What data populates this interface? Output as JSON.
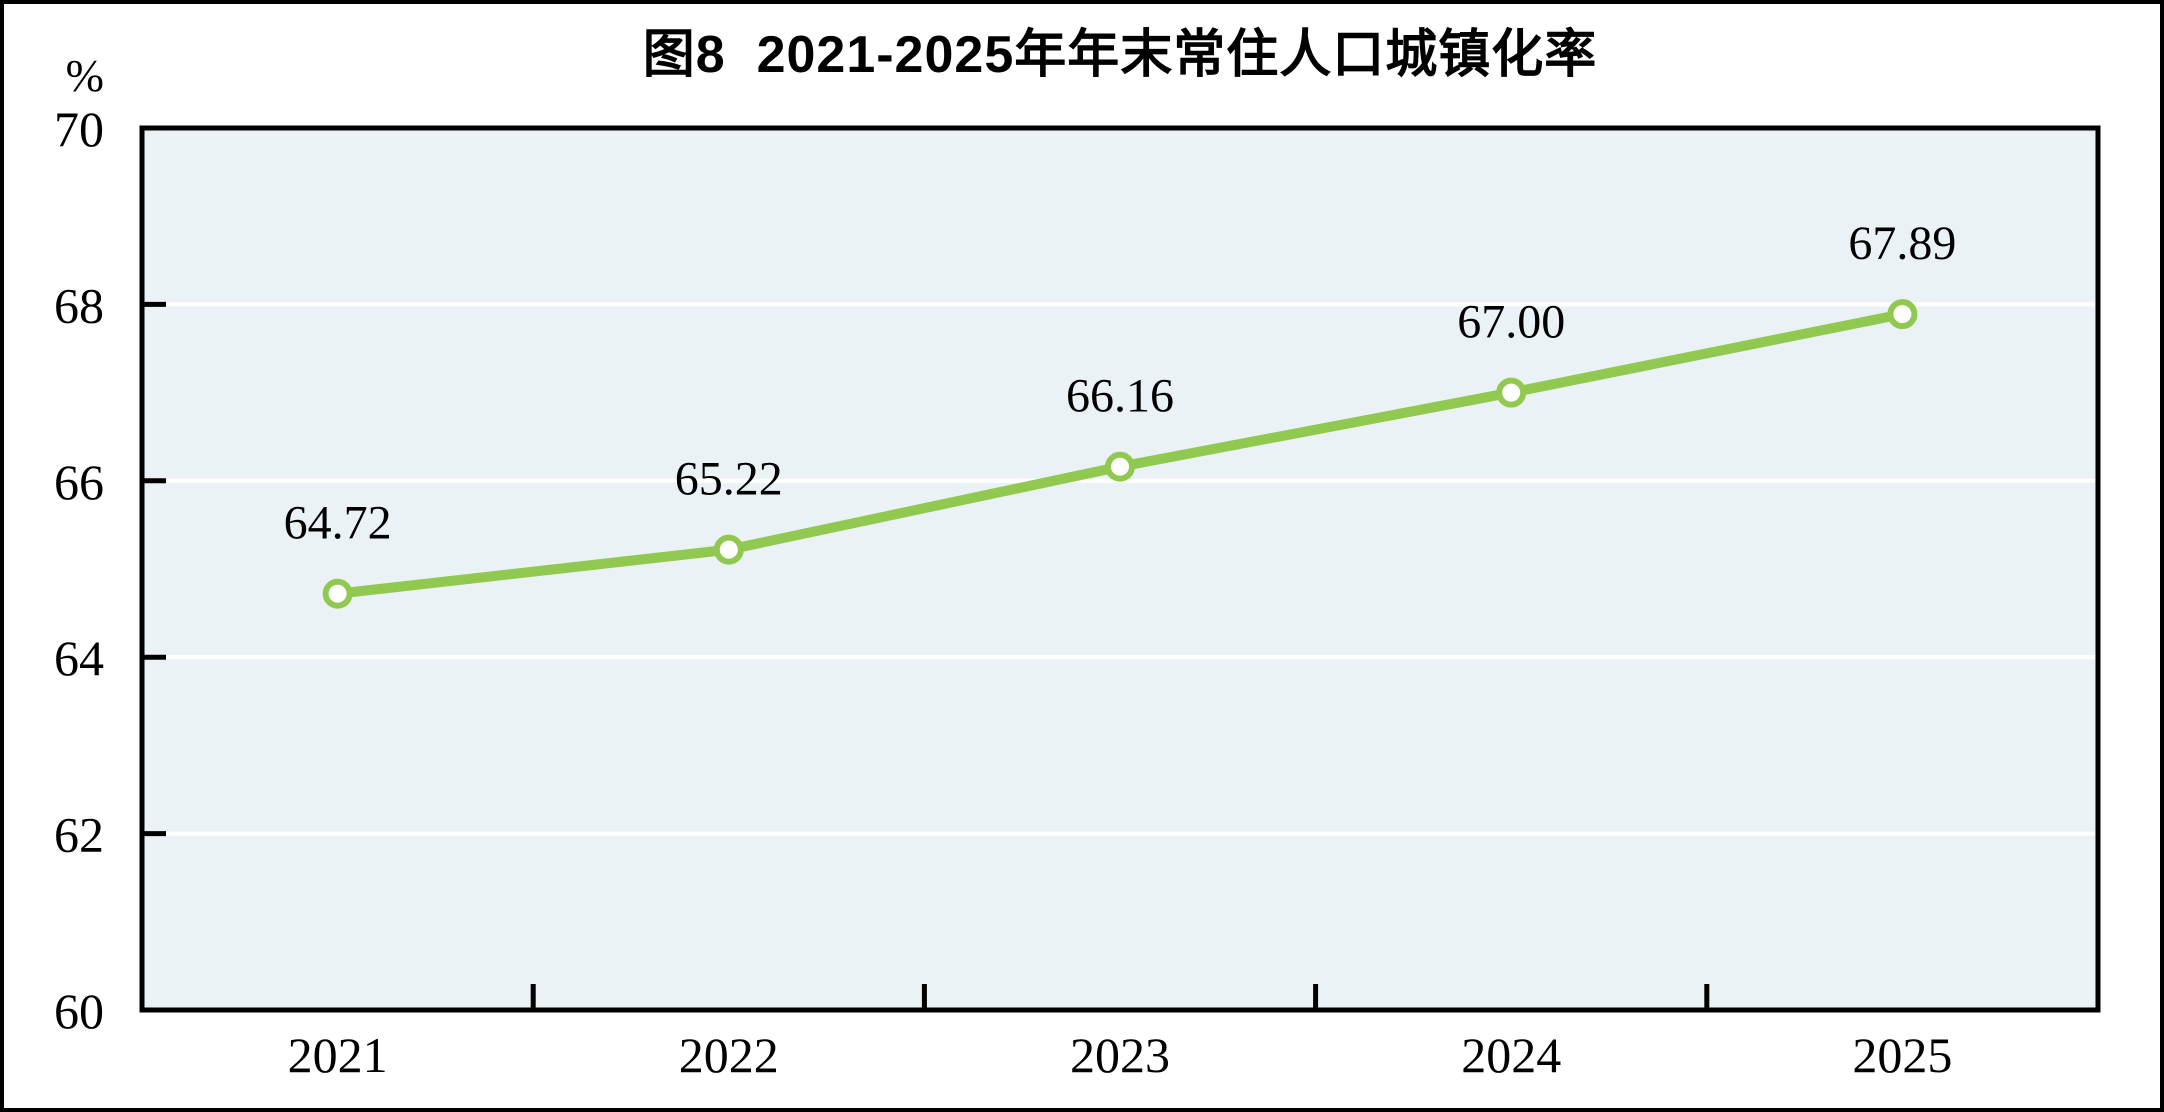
{
  "figure": {
    "title": "图8  2021-2025年年末常住人口城镇化率",
    "unit_label": "%"
  },
  "chart_data": {
    "type": "line",
    "title": "图8  2021-2025年年末常住人口城镇化率",
    "xlabel": "",
    "ylabel": "%",
    "categories": [
      "2021",
      "2022",
      "2023",
      "2024",
      "2025"
    ],
    "series": [
      {
        "name": "年末常住人口城镇化率",
        "values": [
          64.72,
          65.22,
          66.16,
          67.0,
          67.89
        ],
        "data_labels": [
          "64.72",
          "65.22",
          "66.16",
          "67.00",
          "67.89"
        ]
      }
    ],
    "ylim": [
      60,
      70
    ],
    "yticks": [
      60,
      62,
      64,
      66,
      68,
      70
    ],
    "ytick_labels": [
      "60",
      "62",
      "64",
      "66",
      "68",
      "70"
    ],
    "grid": "horizontal, white lines, on",
    "legend": "none",
    "colors": {
      "line": "#91C850",
      "marker_fill": "#FFFFFF",
      "plot_bg": "#EBF2F6",
      "grid": "#FFFFFF",
      "axis": "#000000",
      "text": "#000000"
    }
  }
}
